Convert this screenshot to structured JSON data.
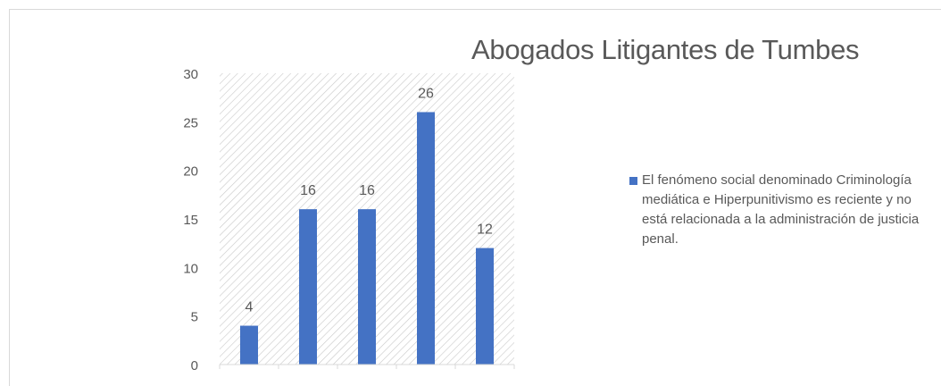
{
  "chart_data": {
    "type": "bar",
    "title": "Abogados Litigantes de Tumbes",
    "categories": [
      "",
      "",
      "",
      "",
      ""
    ],
    "series": [
      {
        "name": "El fenómeno social denominado Criminología mediática e Hiperpunitivismo es reciente y no está relacionada a la administración de justicia penal.",
        "values": [
          4,
          16,
          16,
          26,
          12
        ]
      }
    ],
    "ylim": [
      0,
      30
    ],
    "yticks": [
      0,
      5,
      10,
      15,
      20,
      25,
      30
    ],
    "xlabel": "",
    "ylabel": "",
    "legend_position": "right",
    "grid": false,
    "data_labels": true,
    "colors": {
      "bar": "#4472c4",
      "text": "#595959",
      "hatch": "#c8c8c8",
      "axis": "#d9d9d9"
    }
  }
}
